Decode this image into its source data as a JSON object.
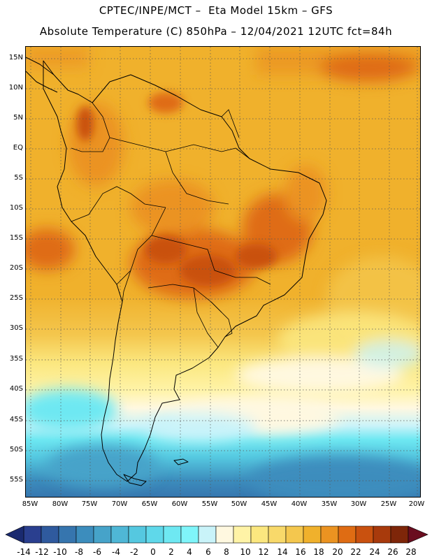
{
  "header": {
    "title_line1": "CPTEC/INPE/MCT –  Eta Model 15km – GFS",
    "title_line2": "Absolute Temperature (C) 850hPa – 12/04/2021 12UTC fct=84h"
  },
  "map": {
    "lat_labels": [
      "15N",
      "10N",
      "5N",
      "EQ",
      "5S",
      "10S",
      "15S",
      "20S",
      "25S",
      "30S",
      "35S",
      "40S",
      "45S",
      "50S",
      "55S"
    ],
    "lon_labels": [
      "85W",
      "80W",
      "75W",
      "70W",
      "65W",
      "60W",
      "55W",
      "50W",
      "45W",
      "40W",
      "35W",
      "30W",
      "25W",
      "20W"
    ]
  },
  "colorbar": {
    "labels": [
      "-14",
      "-12",
      "-10",
      "-8",
      "-6",
      "-4",
      "-2",
      "0",
      "2",
      "4",
      "6",
      "8",
      "10",
      "12",
      "14",
      "16",
      "18",
      "20",
      "22",
      "24",
      "26",
      "28"
    ],
    "colors": [
      "#2a3f8f",
      "#2f5a9e",
      "#3675ae",
      "#3c8dbd",
      "#46a3c9",
      "#4fb7d6",
      "#55c8e0",
      "#5fd8ea",
      "#6ee8f2",
      "#7ff5fa",
      "#c9f3f9",
      "#fff8e0",
      "#fff3a6",
      "#fbe77f",
      "#f8d96a",
      "#f4c74e",
      "#f0b12c",
      "#eb9321",
      "#df6c13",
      "#c9510f",
      "#a83a0c",
      "#7e2609"
    ],
    "end_low": "#1a2a70",
    "end_high": "#6a0d1f"
  }
}
